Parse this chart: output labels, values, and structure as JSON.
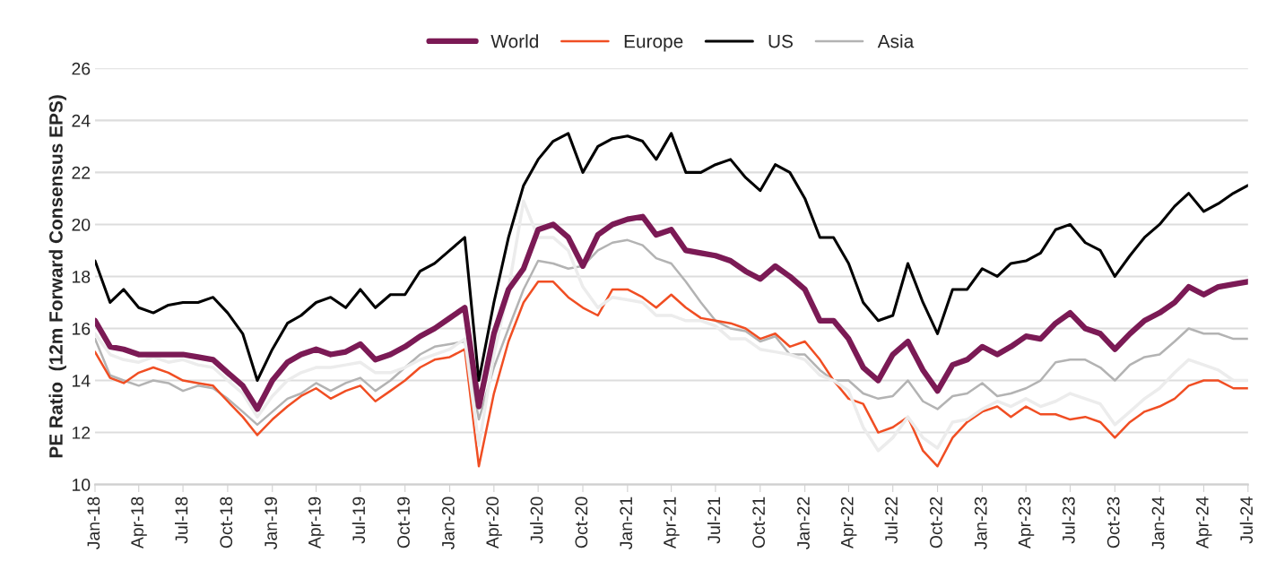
{
  "chart_data": {
    "type": "line",
    "ylabel": "PE Ratio  (12m Forward Consensus EPS)",
    "x": [
      "2018-01",
      "2018-02",
      "2018-03",
      "2018-04",
      "2018-05",
      "2018-06",
      "2018-07",
      "2018-08",
      "2018-09",
      "2018-10",
      "2018-11",
      "2018-12",
      "2019-01",
      "2019-02",
      "2019-03",
      "2019-04",
      "2019-05",
      "2019-06",
      "2019-07",
      "2019-08",
      "2019-09",
      "2019-10",
      "2019-11",
      "2019-12",
      "2020-01",
      "2020-02",
      "2020-03",
      "2020-04",
      "2020-05",
      "2020-06",
      "2020-07",
      "2020-08",
      "2020-09",
      "2020-10",
      "2020-11",
      "2020-12",
      "2021-01",
      "2021-02",
      "2021-03",
      "2021-04",
      "2021-05",
      "2021-06",
      "2021-07",
      "2021-08",
      "2021-09",
      "2021-10",
      "2021-11",
      "2021-12",
      "2022-01",
      "2022-02",
      "2022-03",
      "2022-04",
      "2022-05",
      "2022-06",
      "2022-07",
      "2022-08",
      "2022-09",
      "2022-10",
      "2022-11",
      "2022-12",
      "2023-01",
      "2023-02",
      "2023-03",
      "2023-04",
      "2023-05",
      "2023-06",
      "2023-07",
      "2023-08",
      "2023-09",
      "2023-10",
      "2023-11",
      "2023-12",
      "2024-01",
      "2024-02",
      "2024-03",
      "2024-04",
      "2024-05",
      "2024-06",
      "2024-07"
    ],
    "series": [
      {
        "name": "World",
        "color": "#7b1a55",
        "values": [
          16.3,
          15.3,
          15.2,
          15.0,
          15.0,
          15.0,
          15.0,
          14.9,
          14.8,
          14.3,
          13.8,
          12.9,
          14.0,
          14.7,
          15.0,
          15.2,
          15.0,
          15.1,
          15.4,
          14.8,
          15.0,
          15.3,
          15.7,
          16.0,
          16.4,
          16.8,
          13.0,
          15.8,
          17.5,
          18.3,
          19.8,
          20.0,
          19.5,
          18.4,
          19.6,
          20.0,
          20.2,
          20.3,
          19.6,
          19.8,
          19.0,
          18.9,
          18.8,
          18.6,
          18.2,
          17.9,
          18.4,
          18.0,
          17.5,
          16.3,
          16.3,
          15.6,
          14.5,
          14.0,
          15.0,
          15.5,
          14.4,
          13.6,
          14.6,
          14.8,
          15.3,
          15.0,
          15.3,
          15.7,
          15.6,
          16.2,
          16.6,
          16.0,
          15.8,
          15.2,
          15.8,
          16.3,
          16.6,
          17.0,
          17.6,
          17.3,
          17.6,
          17.7,
          17.8
        ]
      },
      {
        "name": "Europe",
        "color": "#f04e23",
        "values": [
          15.1,
          14.1,
          13.9,
          14.3,
          14.5,
          14.3,
          14.0,
          13.9,
          13.8,
          13.2,
          12.6,
          11.9,
          12.5,
          13.0,
          13.4,
          13.7,
          13.3,
          13.6,
          13.8,
          13.2,
          13.6,
          14.0,
          14.5,
          14.8,
          14.9,
          15.2,
          10.7,
          13.5,
          15.5,
          17.0,
          17.8,
          17.8,
          17.2,
          16.8,
          16.5,
          17.5,
          17.5,
          17.2,
          16.8,
          17.3,
          16.8,
          16.4,
          16.3,
          16.2,
          16.0,
          15.6,
          15.8,
          15.3,
          15.5,
          14.8,
          14.0,
          13.3,
          13.1,
          12.0,
          12.2,
          12.6,
          11.3,
          10.7,
          11.8,
          12.4,
          12.8,
          13.0,
          12.6,
          13.0,
          12.7,
          12.7,
          12.5,
          12.6,
          12.4,
          11.8,
          12.4,
          12.8,
          13.0,
          13.3,
          13.8,
          14.0,
          14.0,
          13.7,
          13.7
        ]
      },
      {
        "name": "US",
        "color": "#000000",
        "values": [
          18.6,
          17.0,
          17.5,
          16.8,
          16.6,
          16.9,
          17.0,
          17.0,
          17.2,
          16.6,
          15.8,
          14.0,
          15.2,
          16.2,
          16.5,
          17.0,
          17.2,
          16.8,
          17.5,
          16.8,
          17.3,
          17.3,
          18.2,
          18.5,
          19.0,
          19.5,
          14.0,
          17.0,
          19.5,
          21.5,
          22.5,
          23.2,
          23.5,
          22.0,
          23.0,
          23.3,
          23.4,
          23.2,
          22.5,
          23.5,
          22.0,
          22.0,
          22.3,
          22.5,
          21.8,
          21.3,
          22.3,
          22.0,
          21.0,
          19.5,
          19.5,
          18.5,
          17.0,
          16.3,
          16.5,
          18.5,
          17.0,
          15.8,
          17.5,
          17.5,
          18.3,
          18.0,
          18.5,
          18.6,
          18.9,
          19.8,
          20.0,
          19.3,
          19.0,
          18.0,
          18.8,
          19.5,
          20.0,
          20.7,
          21.2,
          20.5,
          20.8,
          21.2,
          21.5
        ]
      },
      {
        "name": "Asia",
        "color": "#b3b3b3",
        "values": [
          15.6,
          14.2,
          14.0,
          13.8,
          14.0,
          13.9,
          13.6,
          13.8,
          13.7,
          13.3,
          12.8,
          12.3,
          12.8,
          13.3,
          13.5,
          13.9,
          13.6,
          13.9,
          14.1,
          13.6,
          14.0,
          14.5,
          15.0,
          15.3,
          15.4,
          15.5,
          12.5,
          14.5,
          16.0,
          17.5,
          18.6,
          18.5,
          18.3,
          18.4,
          19.0,
          19.3,
          19.4,
          19.2,
          18.7,
          18.5,
          17.8,
          17.0,
          16.3,
          16.0,
          15.9,
          15.5,
          15.7,
          15.0,
          15.0,
          14.4,
          14.0,
          14.0,
          13.5,
          13.3,
          13.4,
          14.0,
          13.2,
          12.9,
          13.4,
          13.5,
          13.9,
          13.4,
          13.5,
          13.7,
          14.0,
          14.7,
          14.8,
          14.8,
          14.5,
          14.0,
          14.6,
          14.9,
          15.0,
          15.5,
          16.0,
          15.8,
          15.8,
          15.6,
          15.6
        ]
      },
      {
        "color": "#ececec",
        "values": [
          15.8,
          15.0,
          14.8,
          14.7,
          14.9,
          14.7,
          14.8,
          14.6,
          14.5,
          14.0,
          13.5,
          12.6,
          13.4,
          14.0,
          14.3,
          14.5,
          14.5,
          14.6,
          14.7,
          14.3,
          14.3,
          14.5,
          14.8,
          15.0,
          15.2,
          15.6,
          11.5,
          15.0,
          17.5,
          20.9,
          19.5,
          19.5,
          19.0,
          17.6,
          16.8,
          17.2,
          17.1,
          17.0,
          16.5,
          16.5,
          16.3,
          16.3,
          16.1,
          15.6,
          15.6,
          15.2,
          15.1,
          15.0,
          14.8,
          14.2,
          14.0,
          13.6,
          12.2,
          11.3,
          11.8,
          12.6,
          11.8,
          11.4,
          12.4,
          12.5,
          12.9,
          13.2,
          13.0,
          13.3,
          13.0,
          13.2,
          13.5,
          13.3,
          13.1,
          12.3,
          12.8,
          13.3,
          13.7,
          14.3,
          14.8,
          14.6,
          14.4,
          14.0,
          14.0
        ]
      }
    ],
    "xlim": [
      "2018-01",
      "2024-07"
    ],
    "xticks": [
      {
        "value": "2018-01",
        "label": "Jan-18"
      },
      {
        "value": "2018-04",
        "label": "Apr-18"
      },
      {
        "value": "2018-07",
        "label": "Jul-18"
      },
      {
        "value": "2018-10",
        "label": "Oct-18"
      },
      {
        "value": "2019-01",
        "label": "Jan-19"
      },
      {
        "value": "2019-04",
        "label": "Apr-19"
      },
      {
        "value": "2019-07",
        "label": "Jul-19"
      },
      {
        "value": "2019-10",
        "label": "Oct-19"
      },
      {
        "value": "2020-01",
        "label": "Jan-20"
      },
      {
        "value": "2020-04",
        "label": "Apr-20"
      },
      {
        "value": "2020-07",
        "label": "Jul-20"
      },
      {
        "value": "2020-10",
        "label": "Oct-20"
      },
      {
        "value": "2021-01",
        "label": "Jan-21"
      },
      {
        "value": "2021-04",
        "label": "Apr-21"
      },
      {
        "value": "2021-07",
        "label": "Jul-21"
      },
      {
        "value": "2021-10",
        "label": "Oct-21"
      },
      {
        "value": "2022-01",
        "label": "Jan-22"
      },
      {
        "value": "2022-04",
        "label": "Apr-22"
      },
      {
        "value": "2022-07",
        "label": "Jul-22"
      },
      {
        "value": "2022-10",
        "label": "Oct-22"
      },
      {
        "value": "2023-01",
        "label": "Jan-23"
      },
      {
        "value": "2023-04",
        "label": "Apr-23"
      },
      {
        "value": "2023-07",
        "label": "Jul-23"
      },
      {
        "value": "2023-10",
        "label": "Oct-23"
      },
      {
        "value": "2024-01",
        "label": "Jan-24"
      },
      {
        "value": "2024-04",
        "label": "Apr-24"
      },
      {
        "value": "2024-07",
        "label": "Jul-24"
      }
    ],
    "ylim": [
      10,
      26
    ],
    "yticks": [
      10,
      12,
      14,
      16,
      18,
      20,
      22,
      24,
      26
    ],
    "grid": "y",
    "legend": "top",
    "marker": "none",
    "line_style": "solid"
  }
}
